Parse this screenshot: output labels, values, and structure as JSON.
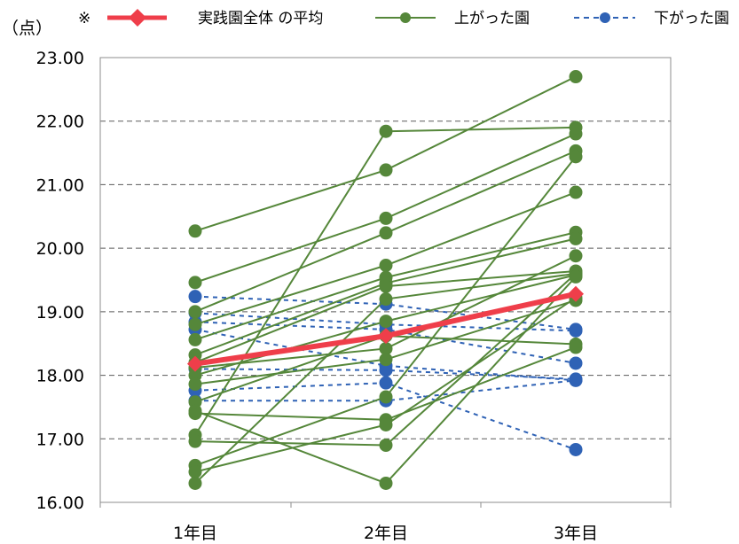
{
  "chart_data": {
    "type": "line",
    "unit_label": "（点）",
    "legend_note": "※",
    "legend": [
      {
        "label": "実践園全体 の平均",
        "style": "average"
      },
      {
        "label": "上がった園",
        "style": "up"
      },
      {
        "label": "下がった園",
        "style": "down"
      }
    ],
    "categories": [
      "1年目",
      "2年目",
      "3年目"
    ],
    "ylim": [
      16.0,
      23.0
    ],
    "yticks": [
      "16.00",
      "17.00",
      "18.00",
      "19.00",
      "20.00",
      "21.00",
      "22.00",
      "23.00"
    ],
    "grid": "horizontal dashed",
    "colors": {
      "average": "#ef3e4a",
      "up": "#55873a",
      "down": "#2f62b5"
    },
    "average": [
      18.18,
      18.62,
      19.28
    ],
    "up_series": [
      [
        20.27,
        21.23,
        22.7
      ],
      [
        19.46,
        20.47,
        21.8
      ],
      [
        19.0,
        20.24,
        21.53
      ],
      [
        18.8,
        19.73,
        20.88
      ],
      [
        18.56,
        19.54,
        20.25
      ],
      [
        18.32,
        19.45,
        20.15
      ],
      [
        18.2,
        19.4,
        19.64
      ],
      [
        18.12,
        18.42,
        19.88
      ],
      [
        18.0,
        18.85,
        19.58
      ],
      [
        17.86,
        18.25,
        19.18
      ],
      [
        17.58,
        18.62,
        18.49
      ],
      [
        17.4,
        17.3,
        18.44
      ],
      [
        17.06,
        21.84,
        21.9
      ],
      [
        16.96,
        16.9,
        19.6
      ],
      [
        16.58,
        17.66,
        21.44
      ],
      [
        16.48,
        17.22,
        19.22
      ],
      [
        16.3,
        19.2,
        19.6
      ],
      [
        17.44,
        16.3,
        19.55
      ]
    ],
    "down_series": [
      [
        19.24,
        19.12,
        18.72
      ],
      [
        18.98,
        18.8,
        18.7
      ],
      [
        18.84,
        18.72,
        18.19
      ],
      [
        18.72,
        18.15,
        17.92
      ],
      [
        18.1,
        18.08,
        17.94
      ],
      [
        17.76,
        17.88,
        16.83
      ],
      [
        17.6,
        17.6,
        17.92
      ]
    ]
  }
}
